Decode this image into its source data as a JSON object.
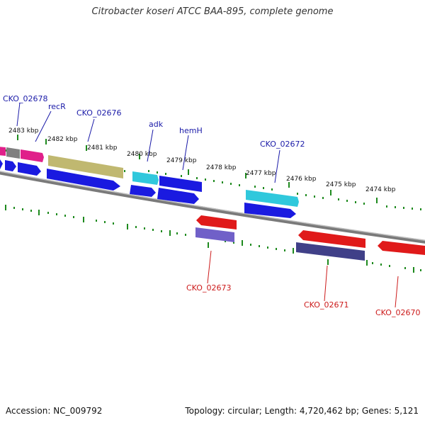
{
  "title": "Citrobacter koseri ATCC BAA-895, complete genome",
  "footer": {
    "accession": "Accession: NC_009792",
    "summary": "Topology: circular; Length: 4,720,462 bp; Genes: 5,121"
  },
  "scale_labels": [
    "2483 kbp",
    "2482 kbp",
    "2481 kbp",
    "2480 kbp",
    "2479 kbp",
    "2478 kbp",
    "2477 kbp",
    "2476 kbp",
    "2475 kbp",
    "2474 kbp"
  ],
  "gene_labels_top": [
    "CKO_02678",
    "recR",
    "CKO_02676",
    "adk",
    "hemH",
    "CKO_02672"
  ],
  "gene_labels_bottom": [
    "CKO_02673",
    "CKO_02671",
    "CKO_02670"
  ],
  "colors": {
    "backbone": "#7a7a7a",
    "ticks": "#1e8a1e",
    "label_top": "#1a1aa8",
    "label_bottom": "#cc1a1a",
    "cds_forward": "#1a1ae0",
    "cds_reverse": "#e01a1a",
    "magenta": "#e0208a",
    "grey": "#808080",
    "olive": "#c0b870",
    "cyan": "#30c8dc",
    "slate": "#7060c8",
    "navy": "#404088"
  }
}
